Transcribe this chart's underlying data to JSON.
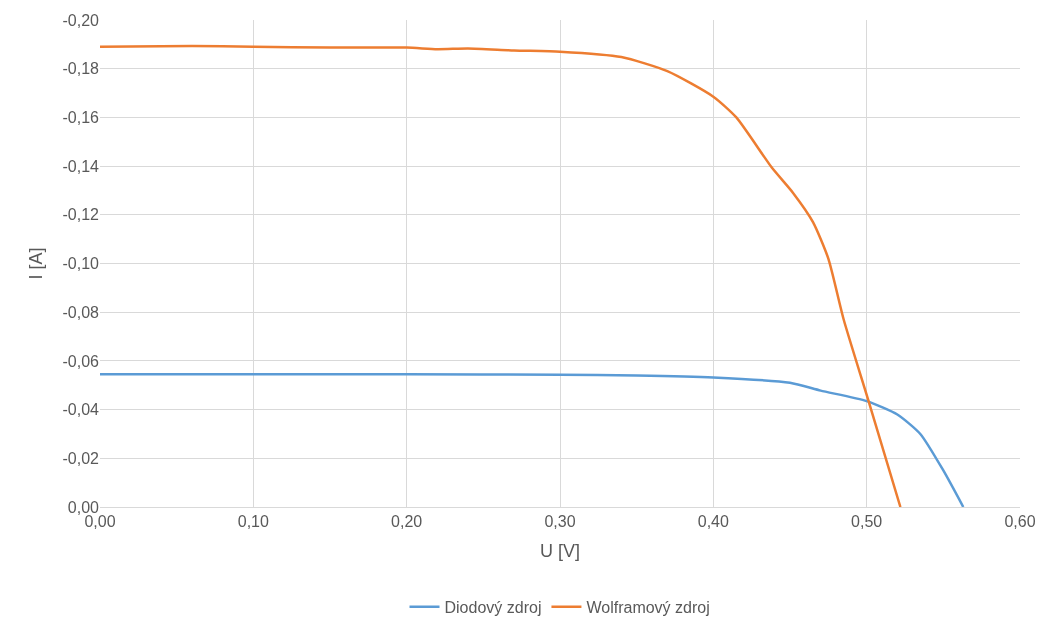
{
  "chart_data": {
    "type": "line",
    "xlabel": "U [V]",
    "ylabel": "I [A]",
    "xlim": [
      0,
      0.6
    ],
    "xticks": [
      {
        "value": 0,
        "label": "0,00"
      },
      {
        "value": 0.1,
        "label": "0,10"
      },
      {
        "value": 0.2,
        "label": "0,20"
      },
      {
        "value": 0.3,
        "label": "0,30"
      },
      {
        "value": 0.4,
        "label": "0,40"
      },
      {
        "value": 0.5,
        "label": "0,50"
      },
      {
        "value": 0.6,
        "label": "0,60"
      }
    ],
    "ylim": [
      0,
      -0.2
    ],
    "yticks": [
      {
        "value": 0,
        "label": "0,00"
      },
      {
        "value": -0.02,
        "label": "-0,02"
      },
      {
        "value": -0.04,
        "label": "-0,04"
      },
      {
        "value": -0.06,
        "label": "-0,06"
      },
      {
        "value": -0.08,
        "label": "-0,08"
      },
      {
        "value": -0.1,
        "label": "-0,10"
      },
      {
        "value": -0.12,
        "label": "-0,12"
      },
      {
        "value": -0.14,
        "label": "-0,14"
      },
      {
        "value": -0.16,
        "label": "-0,16"
      },
      {
        "value": -0.18,
        "label": "-0,18"
      },
      {
        "value": -0.2,
        "label": "-0,20"
      }
    ],
    "grid": true,
    "legend": "bottom",
    "marker": "none",
    "line_style": "solid",
    "series": [
      {
        "name": "Diodový zdroj",
        "color": "#5b9bd5",
        "x": [
          0,
          0.1,
          0.2,
          0.3,
          0.35,
          0.4,
          0.45,
          0.47,
          0.5,
          0.52,
          0.535,
          0.55,
          0.563
        ],
        "values": [
          -0.0545,
          -0.0545,
          -0.0545,
          -0.0543,
          -0.054,
          -0.0532,
          -0.051,
          -0.0478,
          -0.0435,
          -0.038,
          -0.03,
          -0.015,
          0
        ]
      },
      {
        "name": "Wolframový zdroj",
        "color": "#ed7d31",
        "x": [
          0,
          0.06,
          0.1,
          0.15,
          0.2,
          0.22,
          0.24,
          0.27,
          0.3,
          0.34,
          0.37,
          0.4,
          0.415,
          0.438,
          0.452,
          0.465,
          0.475,
          0.485,
          0.501,
          0.522
        ],
        "values": [
          -0.189,
          -0.1893,
          -0.189,
          -0.1887,
          -0.1887,
          -0.188,
          -0.1883,
          -0.1875,
          -0.187,
          -0.1848,
          -0.179,
          -0.1685,
          -0.16,
          -0.1395,
          -0.129,
          -0.117,
          -0.102,
          -0.077,
          -0.044,
          0
        ]
      }
    ]
  }
}
